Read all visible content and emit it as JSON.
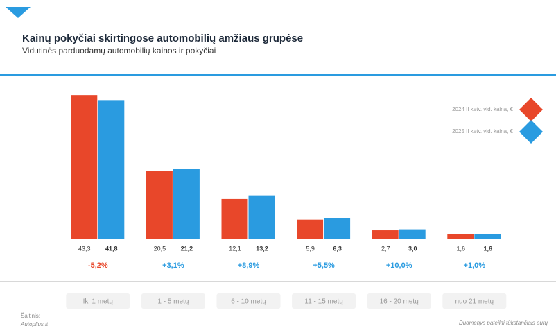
{
  "chart_data": {
    "type": "bar",
    "title": "Kainų pokyčiai skirtingose automobilių amžiaus grupėse",
    "subtitle": "Vidutinės parduodamų automobilių kainos ir pokyčiai",
    "categories": [
      "Iki 1 metų",
      "1 - 5 metų",
      "6 - 10 metų",
      "11 - 15 metų",
      "16 - 20 metų",
      "nuo 21 metų"
    ],
    "series": [
      {
        "name": "2024 II ketv. vid. kaina, €",
        "color": "#e8472a",
        "values": [
          43.3,
          20.5,
          12.1,
          5.9,
          2.7,
          1.6
        ],
        "value_labels": [
          "43,3",
          "20,5",
          "12,1",
          "5,9",
          "2,7",
          "1,6"
        ]
      },
      {
        "name": "2025 II ketv. vid. kaina, €",
        "color": "#2a9be0",
        "values": [
          41.8,
          21.2,
          13.2,
          6.3,
          3.0,
          1.6
        ],
        "value_labels": [
          "41,8",
          "21,2",
          "13,2",
          "6,3",
          "3,0",
          "1,6"
        ]
      }
    ],
    "changes": {
      "values": [
        -5.2,
        3.1,
        8.9,
        5.5,
        10.0,
        1.0
      ],
      "value_labels": [
        "-5,2%",
        "+3,1%",
        "+8,9%",
        "+5,5%",
        "+10,0%",
        "+1,0%"
      ]
    },
    "ylim": [
      0,
      45
    ],
    "source_label": "Šaltinis:",
    "source": "Autoplius.lt",
    "note": "Duomenys pateikti tūkstančiais eurų"
  }
}
